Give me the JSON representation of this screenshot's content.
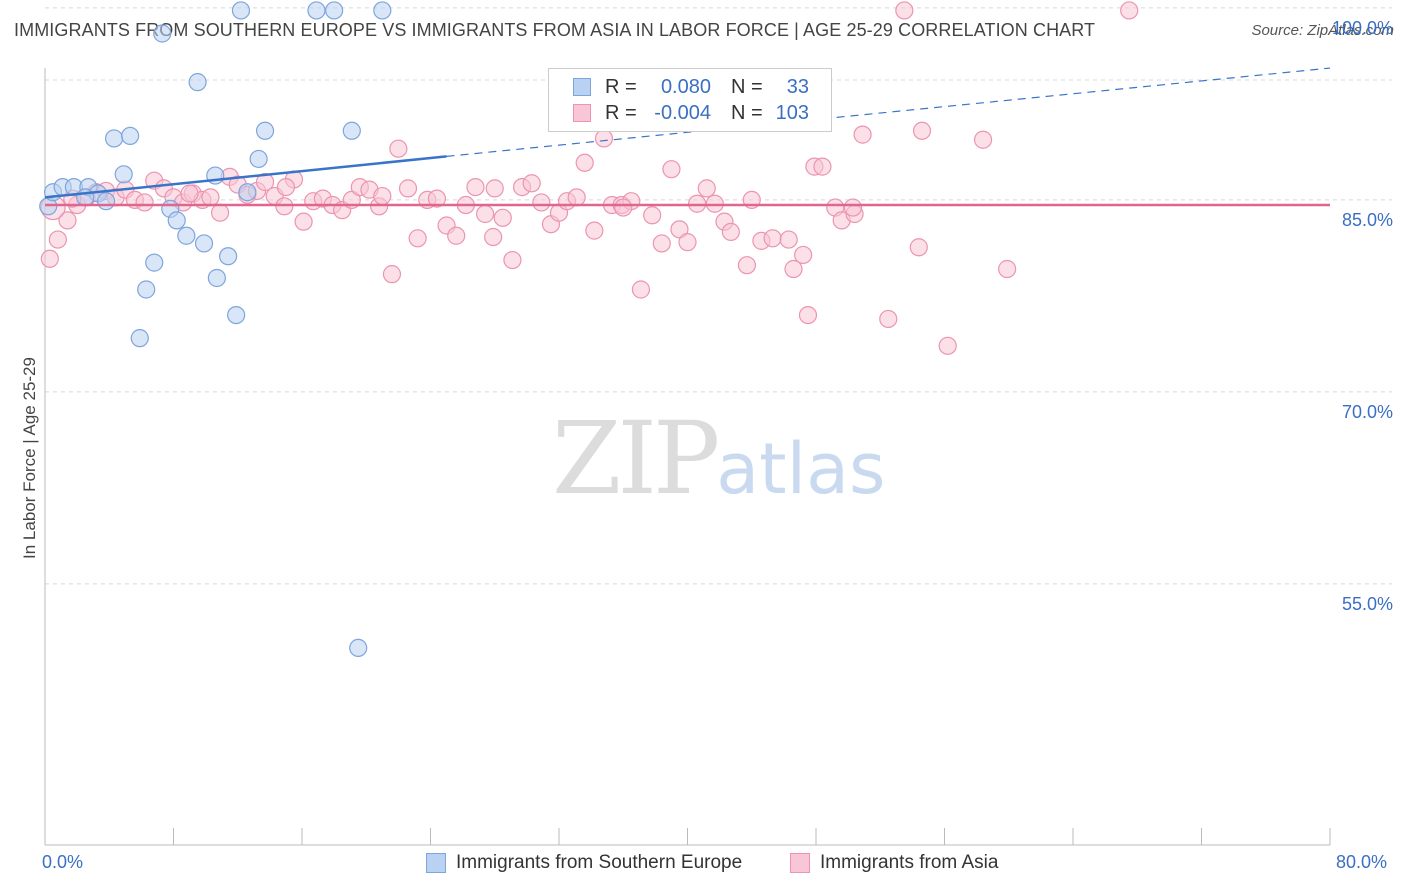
{
  "header": {
    "title": "IMMIGRANTS FROM SOUTHERN EUROPE VS IMMIGRANTS FROM ASIA IN LABOR FORCE | AGE 25-29 CORRELATION CHART",
    "source": "Source: ZipAtlas.com"
  },
  "watermark": {
    "zip": "ZIP",
    "atlas": "atlas"
  },
  "legend": {
    "row1": {
      "r_label": "R =",
      "r_value": "0.080",
      "n_label": "N =",
      "n_value": "33"
    },
    "row2": {
      "r_label": "R =",
      "r_value": "-0.004",
      "n_label": "N =",
      "n_value": "103"
    }
  },
  "bottom_legend": {
    "series1": "Immigrants from Southern Europe",
    "series2": "Immigrants from Asia"
  },
  "colors": {
    "blue_fill": "#b9d1f2",
    "blue_stroke": "#7ea5dc",
    "blue_line": "#3a74c9",
    "pink_fill": "#f8c6d6",
    "pink_stroke": "#ec94b1",
    "pink_line": "#e0668f",
    "axis_text": "#3a6fc4",
    "grid": "#d8d8d8"
  },
  "chart_data": {
    "type": "scatter",
    "title": "IMMIGRANTS FROM SOUTHERN EUROPE VS IMMIGRANTS FROM ASIA IN LABOR FORCE | AGE 25-29 CORRELATION CHART",
    "xlabel": "",
    "ylabel": "In Labor Force | Age 25-29",
    "xlim": [
      0,
      80
    ],
    "ylim": [
      41.5,
      101.5
    ],
    "x_tick_labels": [
      "0.0%",
      "80.0%"
    ],
    "y_ticks": [
      55,
      70,
      85,
      100
    ],
    "y_tick_labels": [
      "55.0%",
      "70.0%",
      "85.0%",
      "100.0%"
    ],
    "grid": "horizontal dashed",
    "series": [
      {
        "name": "Immigrants from Southern Europe",
        "color": "#7ea5dc",
        "R": 0.08,
        "N": 33,
        "trend": {
          "x0": 0,
          "y0": 85.2,
          "x1": 25,
          "y1": 88.4,
          "dashed_to_x": 80,
          "dashed_to_y": 95.3
        },
        "points": [
          [
            0.2,
            84.5
          ],
          [
            0.5,
            85.6
          ],
          [
            1.1,
            86.0
          ],
          [
            1.8,
            86.0
          ],
          [
            2.7,
            86.0
          ],
          [
            3.3,
            85.5
          ],
          [
            3.8,
            84.9
          ],
          [
            4.3,
            89.8
          ],
          [
            4.9,
            87.0
          ],
          [
            5.3,
            90.0
          ],
          [
            5.9,
            74.2
          ],
          [
            6.3,
            78.0
          ],
          [
            6.8,
            80.1
          ],
          [
            7.3,
            98.0
          ],
          [
            7.8,
            84.3
          ],
          [
            8.2,
            83.4
          ],
          [
            8.8,
            82.2
          ],
          [
            9.5,
            94.2
          ],
          [
            9.9,
            81.6
          ],
          [
            10.7,
            78.9
          ],
          [
            10.6,
            86.9
          ],
          [
            11.4,
            80.6
          ],
          [
            11.9,
            76.0
          ],
          [
            12.6,
            85.6
          ],
          [
            13.3,
            88.2
          ],
          [
            13.7,
            90.4
          ],
          [
            12.2,
            99.8
          ],
          [
            16.9,
            99.8
          ],
          [
            18.0,
            99.8
          ],
          [
            19.1,
            90.4
          ],
          [
            21.0,
            99.8
          ],
          [
            19.5,
            50.0
          ],
          [
            2.5,
            85.2
          ]
        ]
      },
      {
        "name": "Immigrants from Asia",
        "color": "#ec94b1",
        "R": -0.004,
        "N": 103,
        "trend": {
          "x0": 0,
          "y0": 84.6,
          "x1": 80,
          "y1": 84.6
        },
        "points": [
          [
            0.3,
            80.4
          ],
          [
            0.8,
            81.9
          ],
          [
            1.4,
            83.4
          ],
          [
            2.0,
            84.6
          ],
          [
            2.6,
            85.2
          ],
          [
            3.2,
            85.6
          ],
          [
            3.8,
            85.7
          ],
          [
            4.4,
            85.2
          ],
          [
            5.0,
            85.8
          ],
          [
            5.6,
            85.0
          ],
          [
            6.2,
            84.8
          ],
          [
            6.8,
            86.5
          ],
          [
            7.4,
            85.9
          ],
          [
            8.0,
            85.2
          ],
          [
            8.6,
            84.8
          ],
          [
            9.2,
            85.5
          ],
          [
            9.8,
            85.0
          ],
          [
            10.3,
            85.2
          ],
          [
            10.9,
            84.0
          ],
          [
            11.5,
            86.8
          ],
          [
            12.0,
            86.2
          ],
          [
            12.6,
            85.4
          ],
          [
            13.2,
            85.7
          ],
          [
            13.7,
            86.4
          ],
          [
            14.3,
            85.3
          ],
          [
            14.9,
            84.5
          ],
          [
            15.5,
            86.6
          ],
          [
            16.1,
            83.3
          ],
          [
            16.7,
            84.9
          ],
          [
            17.3,
            85.1
          ],
          [
            17.9,
            84.6
          ],
          [
            18.5,
            84.2
          ],
          [
            19.1,
            85.0
          ],
          [
            19.6,
            86.0
          ],
          [
            20.2,
            85.8
          ],
          [
            20.8,
            84.5
          ],
          [
            21.6,
            79.2
          ],
          [
            22.0,
            89.0
          ],
          [
            22.6,
            85.9
          ],
          [
            23.2,
            82.0
          ],
          [
            23.8,
            85.0
          ],
          [
            24.4,
            85.1
          ],
          [
            25.0,
            83.0
          ],
          [
            25.6,
            82.2
          ],
          [
            26.2,
            84.6
          ],
          [
            26.8,
            86.0
          ],
          [
            27.4,
            83.9
          ],
          [
            27.9,
            82.1
          ],
          [
            28.5,
            83.6
          ],
          [
            29.1,
            80.3
          ],
          [
            29.7,
            86.0
          ],
          [
            30.3,
            86.3
          ],
          [
            30.9,
            84.8
          ],
          [
            31.5,
            83.1
          ],
          [
            32.0,
            84.0
          ],
          [
            32.5,
            84.9
          ],
          [
            33.1,
            85.2
          ],
          [
            33.6,
            87.9
          ],
          [
            34.2,
            82.6
          ],
          [
            34.8,
            89.8
          ],
          [
            35.3,
            84.6
          ],
          [
            35.9,
            84.6
          ],
          [
            36.5,
            84.9
          ],
          [
            37.1,
            78.0
          ],
          [
            37.8,
            83.8
          ],
          [
            38.4,
            81.6
          ],
          [
            39.0,
            87.4
          ],
          [
            39.5,
            82.7
          ],
          [
            40.0,
            81.7
          ],
          [
            40.6,
            84.7
          ],
          [
            41.2,
            85.9
          ],
          [
            41.7,
            84.7
          ],
          [
            42.3,
            83.3
          ],
          [
            42.7,
            82.5
          ],
          [
            43.7,
            79.9
          ],
          [
            44.6,
            81.8
          ],
          [
            45.3,
            82.0
          ],
          [
            46.3,
            81.9
          ],
          [
            46.6,
            79.6
          ],
          [
            47.2,
            80.7
          ],
          [
            47.5,
            76.0
          ],
          [
            47.9,
            87.6
          ],
          [
            48.4,
            87.6
          ],
          [
            49.2,
            84.4
          ],
          [
            49.6,
            83.4
          ],
          [
            50.4,
            83.9
          ],
          [
            50.9,
            90.1
          ],
          [
            50.3,
            84.4
          ],
          [
            52.5,
            75.7
          ],
          [
            54.4,
            81.3
          ],
          [
            54.6,
            90.4
          ],
          [
            56.2,
            73.6
          ],
          [
            58.4,
            89.7
          ],
          [
            59.9,
            79.6
          ],
          [
            53.5,
            99.8
          ],
          [
            67.5,
            99.8
          ],
          [
            1.7,
            85.1
          ],
          [
            9.0,
            85.5
          ],
          [
            15.0,
            86.0
          ],
          [
            21.0,
            85.3
          ],
          [
            28.0,
            85.9
          ],
          [
            36.0,
            84.4
          ],
          [
            44.0,
            85.0
          ]
        ]
      }
    ]
  }
}
